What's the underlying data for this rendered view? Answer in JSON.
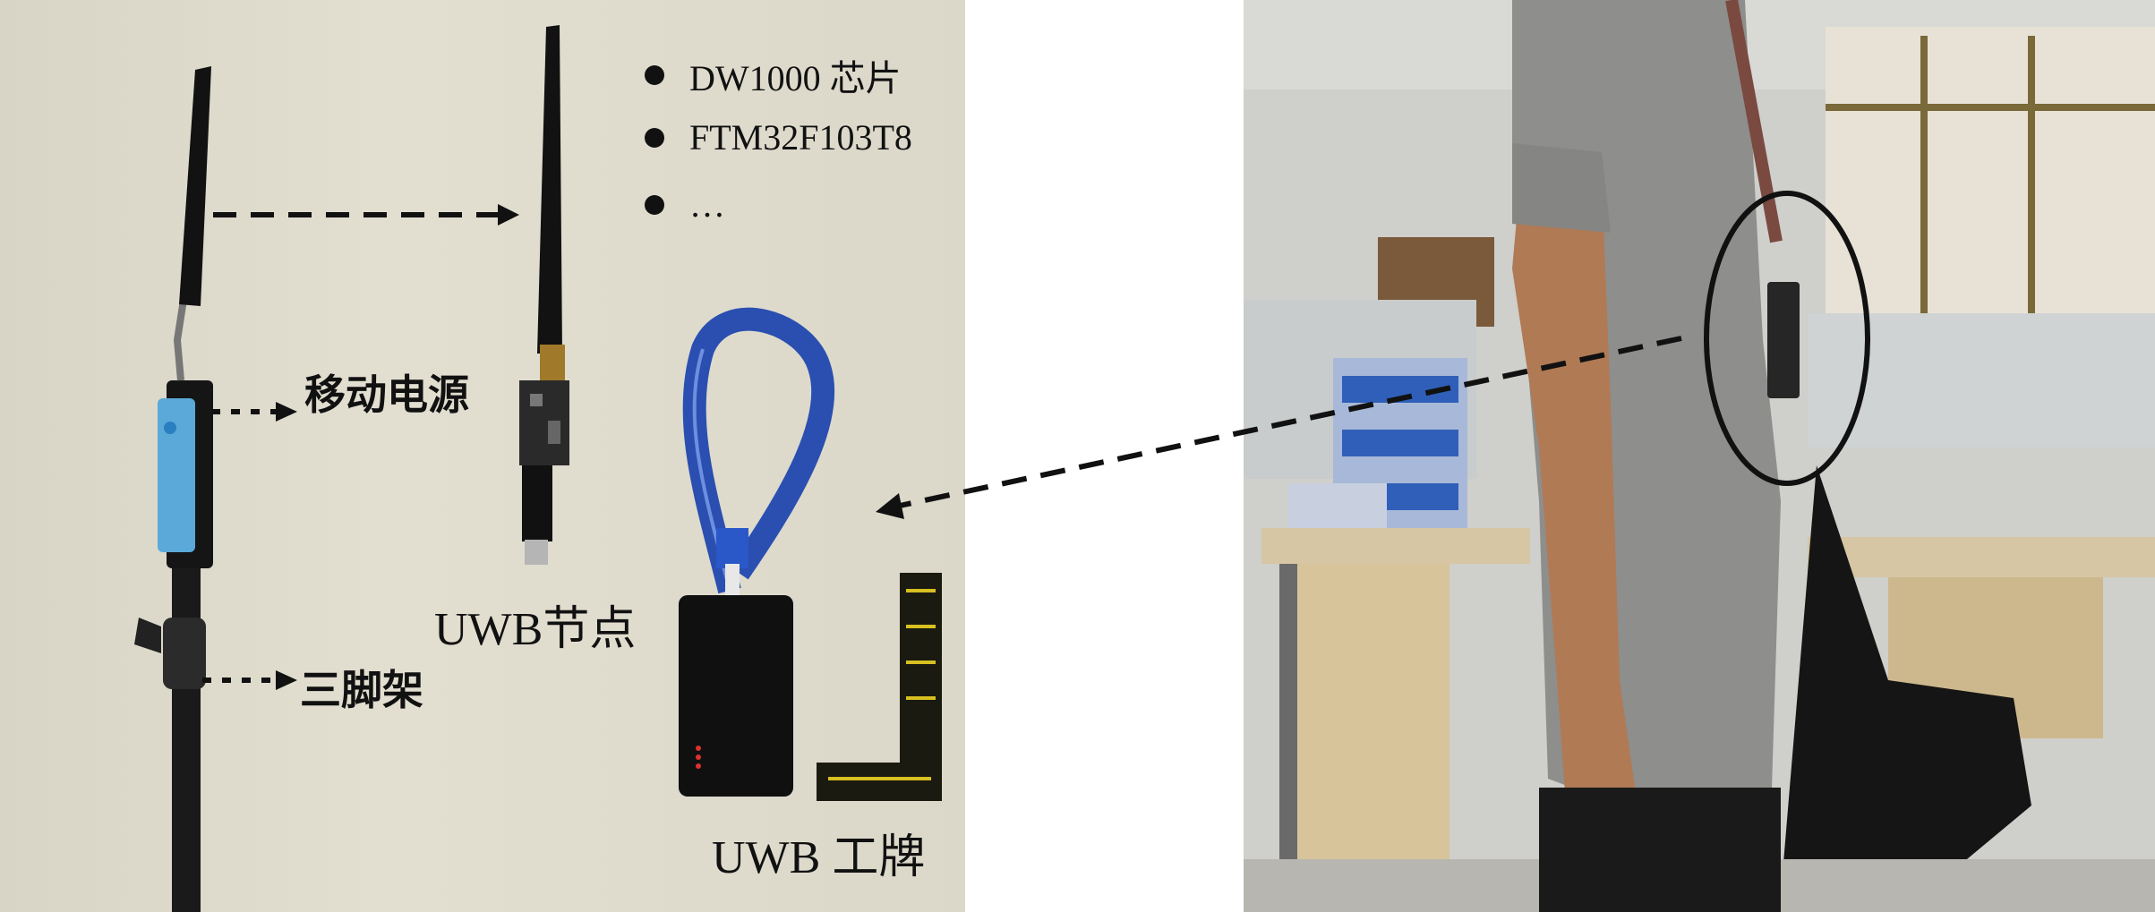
{
  "left_panel": {
    "labels": {
      "power_bank": "移动电源",
      "tripod": "三脚架",
      "uwb_node": "UWB节点",
      "uwb_badge": "UWB 工牌"
    },
    "bullets": [
      {
        "text": "DW1000 芯片"
      },
      {
        "text": "FTM32F103T8"
      },
      {
        "text": "…"
      }
    ]
  },
  "colors": {
    "background_wall": "#dcd8ca",
    "power_bank_blue": "#5aa9d8",
    "lanyard_blue": "#2a4fb0",
    "arrow": "#111111"
  }
}
